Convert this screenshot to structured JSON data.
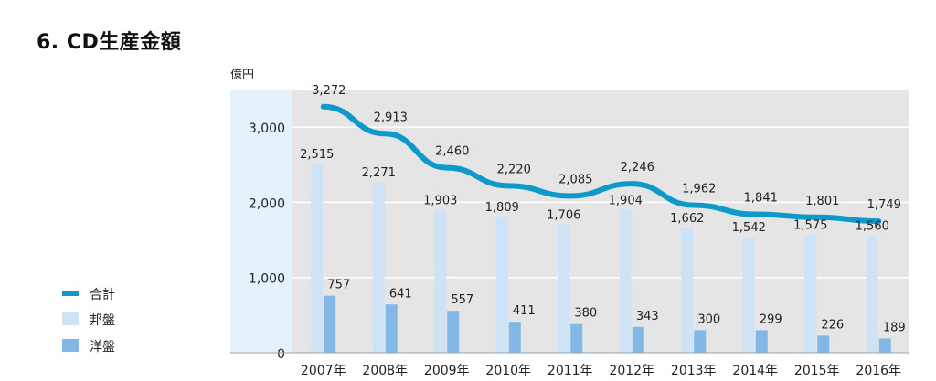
{
  "title": "6. CD生産金額",
  "chart_data": {
    "type": "bar",
    "title": "6. CD生産金額",
    "ylabel": "億円",
    "ylim": [
      0,
      3500
    ],
    "y_ticks": [
      "0",
      "1,000",
      "2,000",
      "3,000"
    ],
    "y_tick_values": [
      0,
      1000,
      2000,
      3000
    ],
    "categories": [
      "2007年",
      "2008年",
      "2009年",
      "2010年",
      "2011年",
      "2012年",
      "2013年",
      "2014年",
      "2015年",
      "2016年"
    ],
    "legend_position": "left",
    "series": [
      {
        "name": "合計",
        "kind": "line",
        "color": "#0d9acb",
        "values": [
          3272,
          2913,
          2460,
          2220,
          2085,
          2246,
          1962,
          1841,
          1801,
          1749
        ],
        "labels": [
          "3,272",
          "2,913",
          "2,460",
          "2,220",
          "2,085",
          "2,246",
          "1,962",
          "1,841",
          "1,801",
          "1,749"
        ]
      },
      {
        "name": "邦盤",
        "kind": "bar",
        "color": "#cfe3f7",
        "values": [
          2515,
          2271,
          1903,
          1809,
          1706,
          1904,
          1662,
          1542,
          1575,
          1560
        ],
        "labels": [
          "2,515",
          "2,271",
          "1,903",
          "1,809",
          "1,706",
          "1,904",
          "1,662",
          "1,542",
          "1,575",
          "1,560"
        ]
      },
      {
        "name": "洋盤",
        "kind": "bar",
        "color": "#82b7e6",
        "values": [
          757,
          641,
          557,
          411,
          380,
          343,
          300,
          299,
          226,
          189
        ],
        "labels": [
          "757",
          "641",
          "557",
          "411",
          "380",
          "343",
          "300",
          "299",
          "226",
          "189"
        ]
      }
    ]
  }
}
